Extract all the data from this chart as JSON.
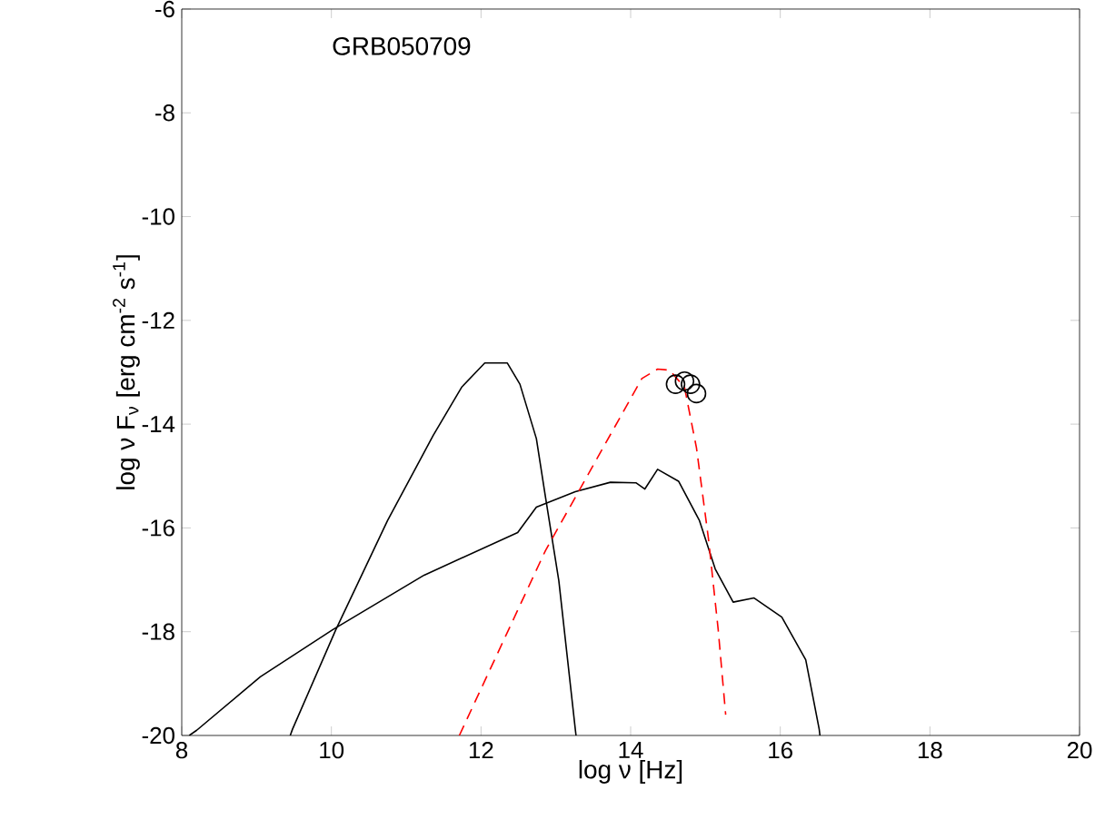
{
  "chart_data": {
    "type": "line",
    "xlabel": "log ν [Hz]",
    "ylabel": "log ν F$_{ν}$ [erg cm$^{-2}$ s$^{-1}$]",
    "annotations": [
      "GRB050709"
    ],
    "xlim": [
      8,
      20
    ],
    "ylim": [
      -20,
      -6
    ],
    "xticks": [
      8,
      10,
      12,
      14,
      16,
      18,
      20
    ],
    "yticks": [
      -20,
      -18,
      -16,
      -14,
      -12,
      -10,
      -8,
      -6
    ],
    "grid": false,
    "series": [
      {
        "color": "#000000",
        "line_style": "solid",
        "marker": "none",
        "x": [
          9.45,
          9.48,
          10.06,
          10.75,
          11.36,
          11.74,
          12.05,
          12.35,
          12.52,
          12.74,
          12.86,
          13.04,
          13.26,
          13.27
        ],
        "values": [
          -20,
          -19.88,
          -17.96,
          -15.86,
          -14.22,
          -13.29,
          -12.82,
          -12.82,
          -13.23,
          -14.28,
          -15.39,
          -17.02,
          -19.88,
          -20
        ]
      },
      {
        "color": "#000000",
        "line_style": "solid",
        "marker": "none",
        "x": [
          8.1,
          8.2,
          9.05,
          10.02,
          11.24,
          12.49,
          12.74,
          13.26,
          13.73,
          14.07,
          14.19,
          14.36,
          14.64,
          14.92,
          15.13,
          15.37,
          15.65,
          16.02,
          16.34,
          16.52,
          16.53
        ],
        "values": [
          -20,
          -19.9,
          -18.87,
          -17.96,
          -16.91,
          -16.09,
          -15.6,
          -15.3,
          -15.12,
          -15.13,
          -15.25,
          -14.87,
          -15.1,
          -15.86,
          -16.79,
          -17.43,
          -17.35,
          -17.72,
          -18.54,
          -19.88,
          -20
        ]
      },
      {
        "color": "#ff0000",
        "line_style": "dashed",
        "marker": "none",
        "x": [
          11.71,
          12.86,
          14.15,
          14.36,
          14.52,
          14.72,
          14.88,
          15.04,
          15.17,
          15.27
        ],
        "values": [
          -20,
          -16.44,
          -13.12,
          -12.94,
          -12.96,
          -13.29,
          -14.46,
          -16.21,
          -17.96,
          -19.6
        ]
      },
      {
        "type": "scatter",
        "color": "#000000",
        "marker": "circle",
        "x": [
          14.6,
          14.72,
          14.8,
          14.88
        ],
        "values": [
          -13.23,
          -13.17,
          -13.23,
          -13.41
        ]
      }
    ]
  }
}
